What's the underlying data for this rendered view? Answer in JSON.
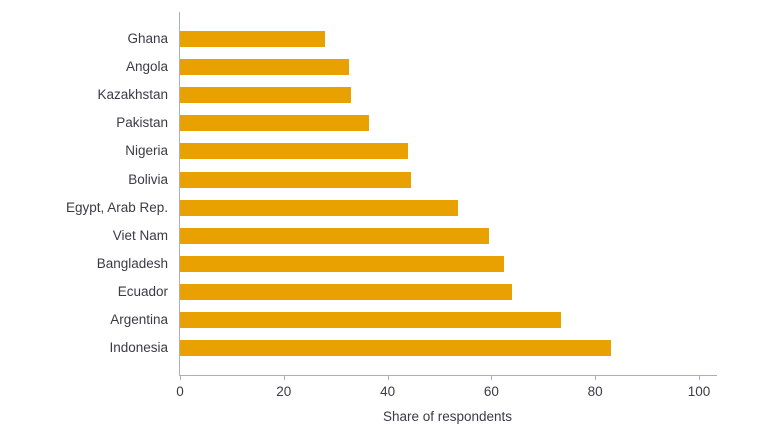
{
  "chart_data": {
    "type": "bar",
    "orientation": "horizontal",
    "title": "",
    "xlabel": "Share of respondents",
    "ylabel": "",
    "categories": [
      "Ghana",
      "Angola",
      "Kazakhstan",
      "Pakistan",
      "Nigeria",
      "Bolivia",
      "Egypt, Arab Rep.",
      "Viet Nam",
      "Bangladesh",
      "Ecuador",
      "Argentina",
      "Indonesia"
    ],
    "values": [
      28,
      32.5,
      33,
      36.5,
      44,
      44.5,
      53.5,
      59.5,
      62.5,
      64,
      73.5,
      83
    ],
    "x_ticks": [
      0,
      20,
      40,
      60,
      80,
      100
    ],
    "xlim": [
      0,
      100
    ],
    "grid": false,
    "legend": null,
    "colors": {
      "bar": "#e8a100",
      "axis": "#a6b2bf",
      "text": "#3b3b46"
    }
  }
}
